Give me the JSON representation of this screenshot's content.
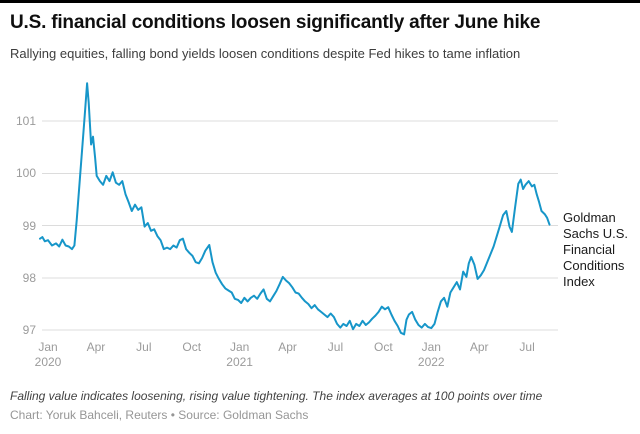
{
  "header": {
    "title": "U.S. financial conditions loosen significantly after June hike",
    "subtitle": "Rallying equities, falling bond yields loosen conditions despite Fed hikes to tame inflation"
  },
  "footer": {
    "note": "Falling value indicates loosening, rising value tightening. The index averages at 100 points over time",
    "credit": "Chart: Yoruk Bahceli, Reuters • Source: Goldman Sachs"
  },
  "chart_data": {
    "type": "line",
    "title": "U.S. financial conditions loosen significantly after June hike",
    "series_label": "Goldman Sachs U.S. Financial Conditions Index",
    "line_color": "#1796c9",
    "grid_color": "#dcdcdc",
    "tick_color": "#9b9b9b",
    "ylim": [
      96.85,
      101.85
    ],
    "yticks": [
      101,
      100,
      99,
      98,
      97
    ],
    "xticks": [
      {
        "label": "Jan",
        "year": "2020",
        "m": 0
      },
      {
        "label": "Apr",
        "m": 3
      },
      {
        "label": "Jul",
        "m": 6
      },
      {
        "label": "Oct",
        "m": 9
      },
      {
        "label": "Jan",
        "year": "2021",
        "m": 12
      },
      {
        "label": "Apr",
        "m": 15
      },
      {
        "label": "Jul",
        "m": 18
      },
      {
        "label": "Oct",
        "m": 21
      },
      {
        "label": "Jan",
        "year": "2022",
        "m": 24
      },
      {
        "label": "Apr",
        "m": 27
      },
      {
        "label": "Jul",
        "m": 30
      }
    ],
    "x_unit": "months since Jan 2020",
    "series": [
      {
        "name": "Goldman Sachs U.S. Financial Conditions Index",
        "points": [
          [
            -0.5,
            98.75
          ],
          [
            -0.35,
            98.78
          ],
          [
            -0.2,
            98.7
          ],
          [
            0,
            98.72
          ],
          [
            0.25,
            98.62
          ],
          [
            0.5,
            98.66
          ],
          [
            0.7,
            98.6
          ],
          [
            0.9,
            98.73
          ],
          [
            1.1,
            98.62
          ],
          [
            1.3,
            98.6
          ],
          [
            1.5,
            98.55
          ],
          [
            1.65,
            98.62
          ],
          [
            1.8,
            99.1
          ],
          [
            2,
            99.9
          ],
          [
            2.15,
            100.5
          ],
          [
            2.3,
            101.1
          ],
          [
            2.45,
            101.72
          ],
          [
            2.55,
            101.35
          ],
          [
            2.7,
            100.55
          ],
          [
            2.82,
            100.7
          ],
          [
            2.95,
            100.3
          ],
          [
            3.05,
            99.95
          ],
          [
            3.25,
            99.85
          ],
          [
            3.45,
            99.78
          ],
          [
            3.65,
            99.95
          ],
          [
            3.85,
            99.85
          ],
          [
            4.05,
            100.02
          ],
          [
            4.25,
            99.82
          ],
          [
            4.45,
            99.78
          ],
          [
            4.65,
            99.85
          ],
          [
            4.85,
            99.6
          ],
          [
            5.05,
            99.45
          ],
          [
            5.25,
            99.28
          ],
          [
            5.45,
            99.4
          ],
          [
            5.65,
            99.3
          ],
          [
            5.85,
            99.35
          ],
          [
            6.05,
            98.98
          ],
          [
            6.25,
            99.05
          ],
          [
            6.45,
            98.9
          ],
          [
            6.65,
            98.93
          ],
          [
            6.85,
            98.8
          ],
          [
            7.05,
            98.72
          ],
          [
            7.25,
            98.55
          ],
          [
            7.45,
            98.58
          ],
          [
            7.65,
            98.55
          ],
          [
            7.85,
            98.62
          ],
          [
            8.05,
            98.58
          ],
          [
            8.25,
            98.72
          ],
          [
            8.45,
            98.75
          ],
          [
            8.65,
            98.55
          ],
          [
            8.85,
            98.48
          ],
          [
            9.05,
            98.42
          ],
          [
            9.25,
            98.3
          ],
          [
            9.45,
            98.28
          ],
          [
            9.65,
            98.38
          ],
          [
            9.85,
            98.52
          ],
          [
            10.1,
            98.63
          ],
          [
            10.3,
            98.3
          ],
          [
            10.5,
            98.1
          ],
          [
            10.7,
            97.98
          ],
          [
            10.9,
            97.88
          ],
          [
            11.1,
            97.8
          ],
          [
            11.3,
            97.76
          ],
          [
            11.5,
            97.72
          ],
          [
            11.7,
            97.6
          ],
          [
            11.9,
            97.58
          ],
          [
            12.1,
            97.52
          ],
          [
            12.3,
            97.62
          ],
          [
            12.5,
            97.55
          ],
          [
            12.7,
            97.62
          ],
          [
            12.9,
            97.66
          ],
          [
            13.1,
            97.6
          ],
          [
            13.3,
            97.7
          ],
          [
            13.5,
            97.78
          ],
          [
            13.7,
            97.6
          ],
          [
            13.9,
            97.55
          ],
          [
            14.1,
            97.65
          ],
          [
            14.3,
            97.75
          ],
          [
            14.5,
            97.88
          ],
          [
            14.7,
            98.02
          ],
          [
            14.9,
            97.95
          ],
          [
            15.1,
            97.9
          ],
          [
            15.3,
            97.82
          ],
          [
            15.5,
            97.72
          ],
          [
            15.7,
            97.7
          ],
          [
            15.9,
            97.62
          ],
          [
            16.1,
            97.55
          ],
          [
            16.3,
            97.5
          ],
          [
            16.5,
            97.42
          ],
          [
            16.7,
            97.48
          ],
          [
            16.9,
            97.4
          ],
          [
            17.1,
            97.35
          ],
          [
            17.3,
            97.3
          ],
          [
            17.5,
            97.25
          ],
          [
            17.7,
            97.32
          ],
          [
            17.9,
            97.25
          ],
          [
            18.1,
            97.12
          ],
          [
            18.3,
            97.05
          ],
          [
            18.5,
            97.12
          ],
          [
            18.7,
            97.08
          ],
          [
            18.9,
            97.18
          ],
          [
            19.1,
            97.02
          ],
          [
            19.3,
            97.12
          ],
          [
            19.5,
            97.08
          ],
          [
            19.7,
            97.18
          ],
          [
            19.9,
            97.1
          ],
          [
            20.1,
            97.15
          ],
          [
            20.3,
            97.22
          ],
          [
            20.5,
            97.28
          ],
          [
            20.7,
            97.35
          ],
          [
            20.9,
            97.45
          ],
          [
            21.1,
            97.4
          ],
          [
            21.3,
            97.44
          ],
          [
            21.5,
            97.3
          ],
          [
            21.7,
            97.18
          ],
          [
            21.9,
            97.08
          ],
          [
            22.1,
            96.95
          ],
          [
            22.3,
            96.92
          ],
          [
            22.45,
            97.2
          ],
          [
            22.6,
            97.3
          ],
          [
            22.8,
            97.35
          ],
          [
            23,
            97.2
          ],
          [
            23.2,
            97.1
          ],
          [
            23.4,
            97.05
          ],
          [
            23.6,
            97.12
          ],
          [
            23.8,
            97.06
          ],
          [
            24,
            97.04
          ],
          [
            24.2,
            97.12
          ],
          [
            24.4,
            97.35
          ],
          [
            24.6,
            97.55
          ],
          [
            24.8,
            97.62
          ],
          [
            25,
            97.45
          ],
          [
            25.2,
            97.72
          ],
          [
            25.4,
            97.82
          ],
          [
            25.6,
            97.92
          ],
          [
            25.8,
            97.78
          ],
          [
            26,
            98.12
          ],
          [
            26.2,
            98.02
          ],
          [
            26.35,
            98.28
          ],
          [
            26.5,
            98.4
          ],
          [
            26.7,
            98.25
          ],
          [
            26.9,
            97.98
          ],
          [
            27.1,
            98.05
          ],
          [
            27.3,
            98.15
          ],
          [
            27.5,
            98.3
          ],
          [
            27.7,
            98.45
          ],
          [
            27.9,
            98.6
          ],
          [
            28.1,
            98.8
          ],
          [
            28.3,
            99.0
          ],
          [
            28.5,
            99.2
          ],
          [
            28.7,
            99.28
          ],
          [
            28.9,
            98.98
          ],
          [
            29.05,
            98.88
          ],
          [
            29.25,
            99.35
          ],
          [
            29.45,
            99.8
          ],
          [
            29.6,
            99.88
          ],
          [
            29.75,
            99.7
          ],
          [
            29.9,
            99.78
          ],
          [
            30.1,
            99.85
          ],
          [
            30.3,
            99.75
          ],
          [
            30.45,
            99.78
          ],
          [
            30.6,
            99.6
          ],
          [
            30.75,
            99.45
          ],
          [
            30.9,
            99.28
          ],
          [
            31.1,
            99.22
          ],
          [
            31.25,
            99.15
          ],
          [
            31.4,
            99.02
          ]
        ]
      }
    ]
  }
}
